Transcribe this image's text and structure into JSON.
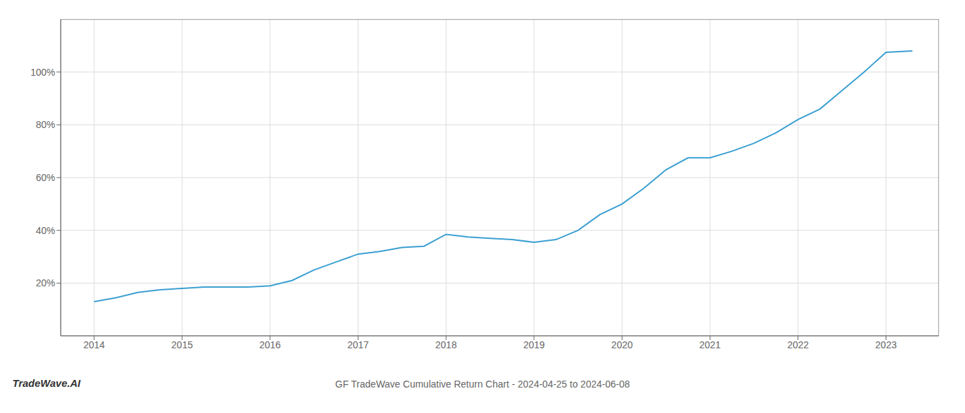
{
  "chart_data": {
    "type": "line",
    "title": "GF TradeWave Cumulative Return Chart - 2024-04-25 to 2024-06-08",
    "annotations": [
      "TradeWave.AI"
    ],
    "x": [
      2014.0,
      2014.25,
      2014.5,
      2014.75,
      2015.0,
      2015.25,
      2015.5,
      2015.75,
      2016.0,
      2016.25,
      2016.5,
      2016.75,
      2017.0,
      2017.25,
      2017.5,
      2017.75,
      2018.0,
      2018.25,
      2018.5,
      2018.75,
      2019.0,
      2019.25,
      2019.5,
      2019.75,
      2020.0,
      2020.25,
      2020.5,
      2020.75,
      2021.0,
      2021.25,
      2021.5,
      2021.75,
      2022.0,
      2022.25,
      2022.5,
      2022.75,
      2023.0,
      2023.3
    ],
    "values": [
      13.0,
      14.5,
      16.5,
      17.5,
      18.0,
      18.5,
      18.5,
      18.5,
      19.0,
      21.0,
      25.0,
      28.0,
      31.0,
      32.0,
      33.5,
      34.0,
      38.5,
      37.5,
      37.0,
      36.5,
      35.5,
      36.5,
      40.0,
      46.0,
      50.0,
      56.0,
      63.0,
      67.5,
      67.5,
      70.0,
      73.0,
      77.0,
      82.0,
      86.0,
      93.0,
      100.0,
      107.5,
      108.0
    ],
    "color": "#3a9fd1",
    "xlim": [
      2013.62,
      2023.6
    ],
    "xticks": [
      2014,
      2015,
      2016,
      2017,
      2018,
      2019,
      2020,
      2021,
      2022,
      2023
    ],
    "ylim": [
      0,
      120
    ],
    "yticks": [
      {
        "value": 20,
        "label": "20%"
      },
      {
        "value": 40,
        "label": "40%"
      },
      {
        "value": 60,
        "label": "60%"
      },
      {
        "value": 80,
        "label": "80%"
      },
      {
        "value": 100,
        "label": "100%"
      }
    ],
    "grid": true
  }
}
